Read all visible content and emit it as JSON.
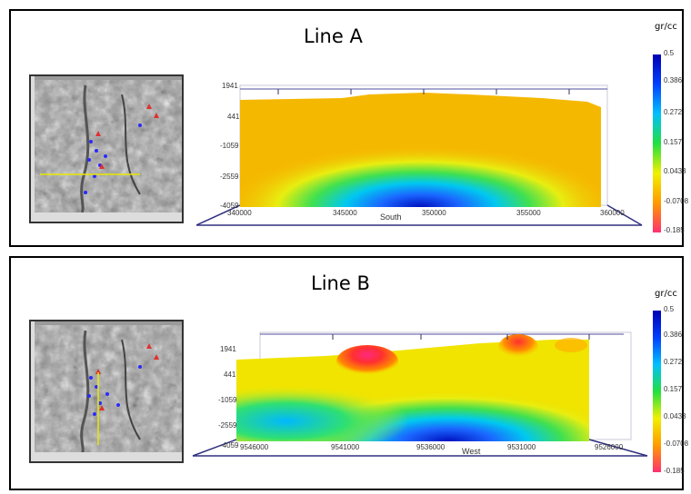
{
  "panels": [
    {
      "title": "Line A",
      "direction": "South",
      "elev_ticks": [
        "1941",
        "441",
        "-1059",
        "-2559",
        "-4059"
      ],
      "x_ticks": [
        "340000",
        "345000",
        "350000",
        "355000",
        "360000"
      ],
      "unit": "gr/cc",
      "scale_ticks": [
        "0.5",
        "0.386",
        "0.272",
        "0.157",
        "0.0433",
        "-0.0708",
        "-0.185"
      ],
      "map_line": "horizontal"
    },
    {
      "title": "Line B",
      "direction": "West",
      "elev_ticks": [
        "1941",
        "441",
        "-1059",
        "-2559",
        "-4059"
      ],
      "x_ticks": [
        "9546000",
        "9541000",
        "9536000",
        "9531000",
        "9526000"
      ],
      "unit": "gr/cc",
      "scale_ticks": [
        "0.5",
        "0.386",
        "0.272",
        "0.157",
        "0.0433",
        "-0.0708",
        "-0.185"
      ],
      "map_line": "vertical"
    }
  ],
  "colors": {
    "scale": [
      "#0000b4",
      "#0040ff",
      "#00c0ff",
      "#20e040",
      "#f0f000",
      "#ff9a00",
      "#ff3070"
    ],
    "map_line": "#e8e800"
  }
}
